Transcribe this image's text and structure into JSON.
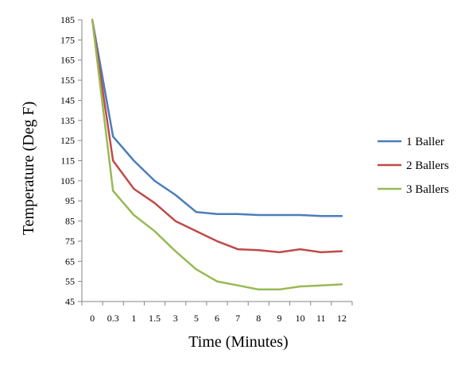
{
  "chart_data": {
    "type": "line",
    "title": "",
    "xlabel": "Time (Minutes)",
    "ylabel": "Temperature (Deg F)",
    "categories": [
      "0",
      "0.3",
      "1",
      "1.5",
      "3",
      "5",
      "6",
      "7",
      "8",
      "9",
      "10",
      "11",
      "12"
    ],
    "ylim": [
      45,
      185
    ],
    "yticks": [
      45,
      55,
      65,
      75,
      85,
      95,
      105,
      115,
      125,
      135,
      145,
      155,
      165,
      175,
      185
    ],
    "grid": false,
    "legend_position": "right",
    "series": [
      {
        "name": "1 Baller",
        "color": "#4a7ebb",
        "values": [
          185,
          127,
          115,
          105,
          98,
          89.5,
          88.5,
          88.5,
          88,
          88,
          88,
          87.5,
          87.5
        ]
      },
      {
        "name": "2 Ballers",
        "color": "#be4b48",
        "values": [
          185,
          115,
          101,
          94,
          85,
          80,
          75,
          71,
          70.5,
          69.5,
          71,
          69.5,
          70
        ]
      },
      {
        "name": "3 Ballers",
        "color": "#98b954",
        "values": [
          185,
          100,
          88,
          80,
          70,
          61,
          55,
          53,
          51,
          51,
          52.5,
          53,
          53.5
        ]
      }
    ]
  }
}
